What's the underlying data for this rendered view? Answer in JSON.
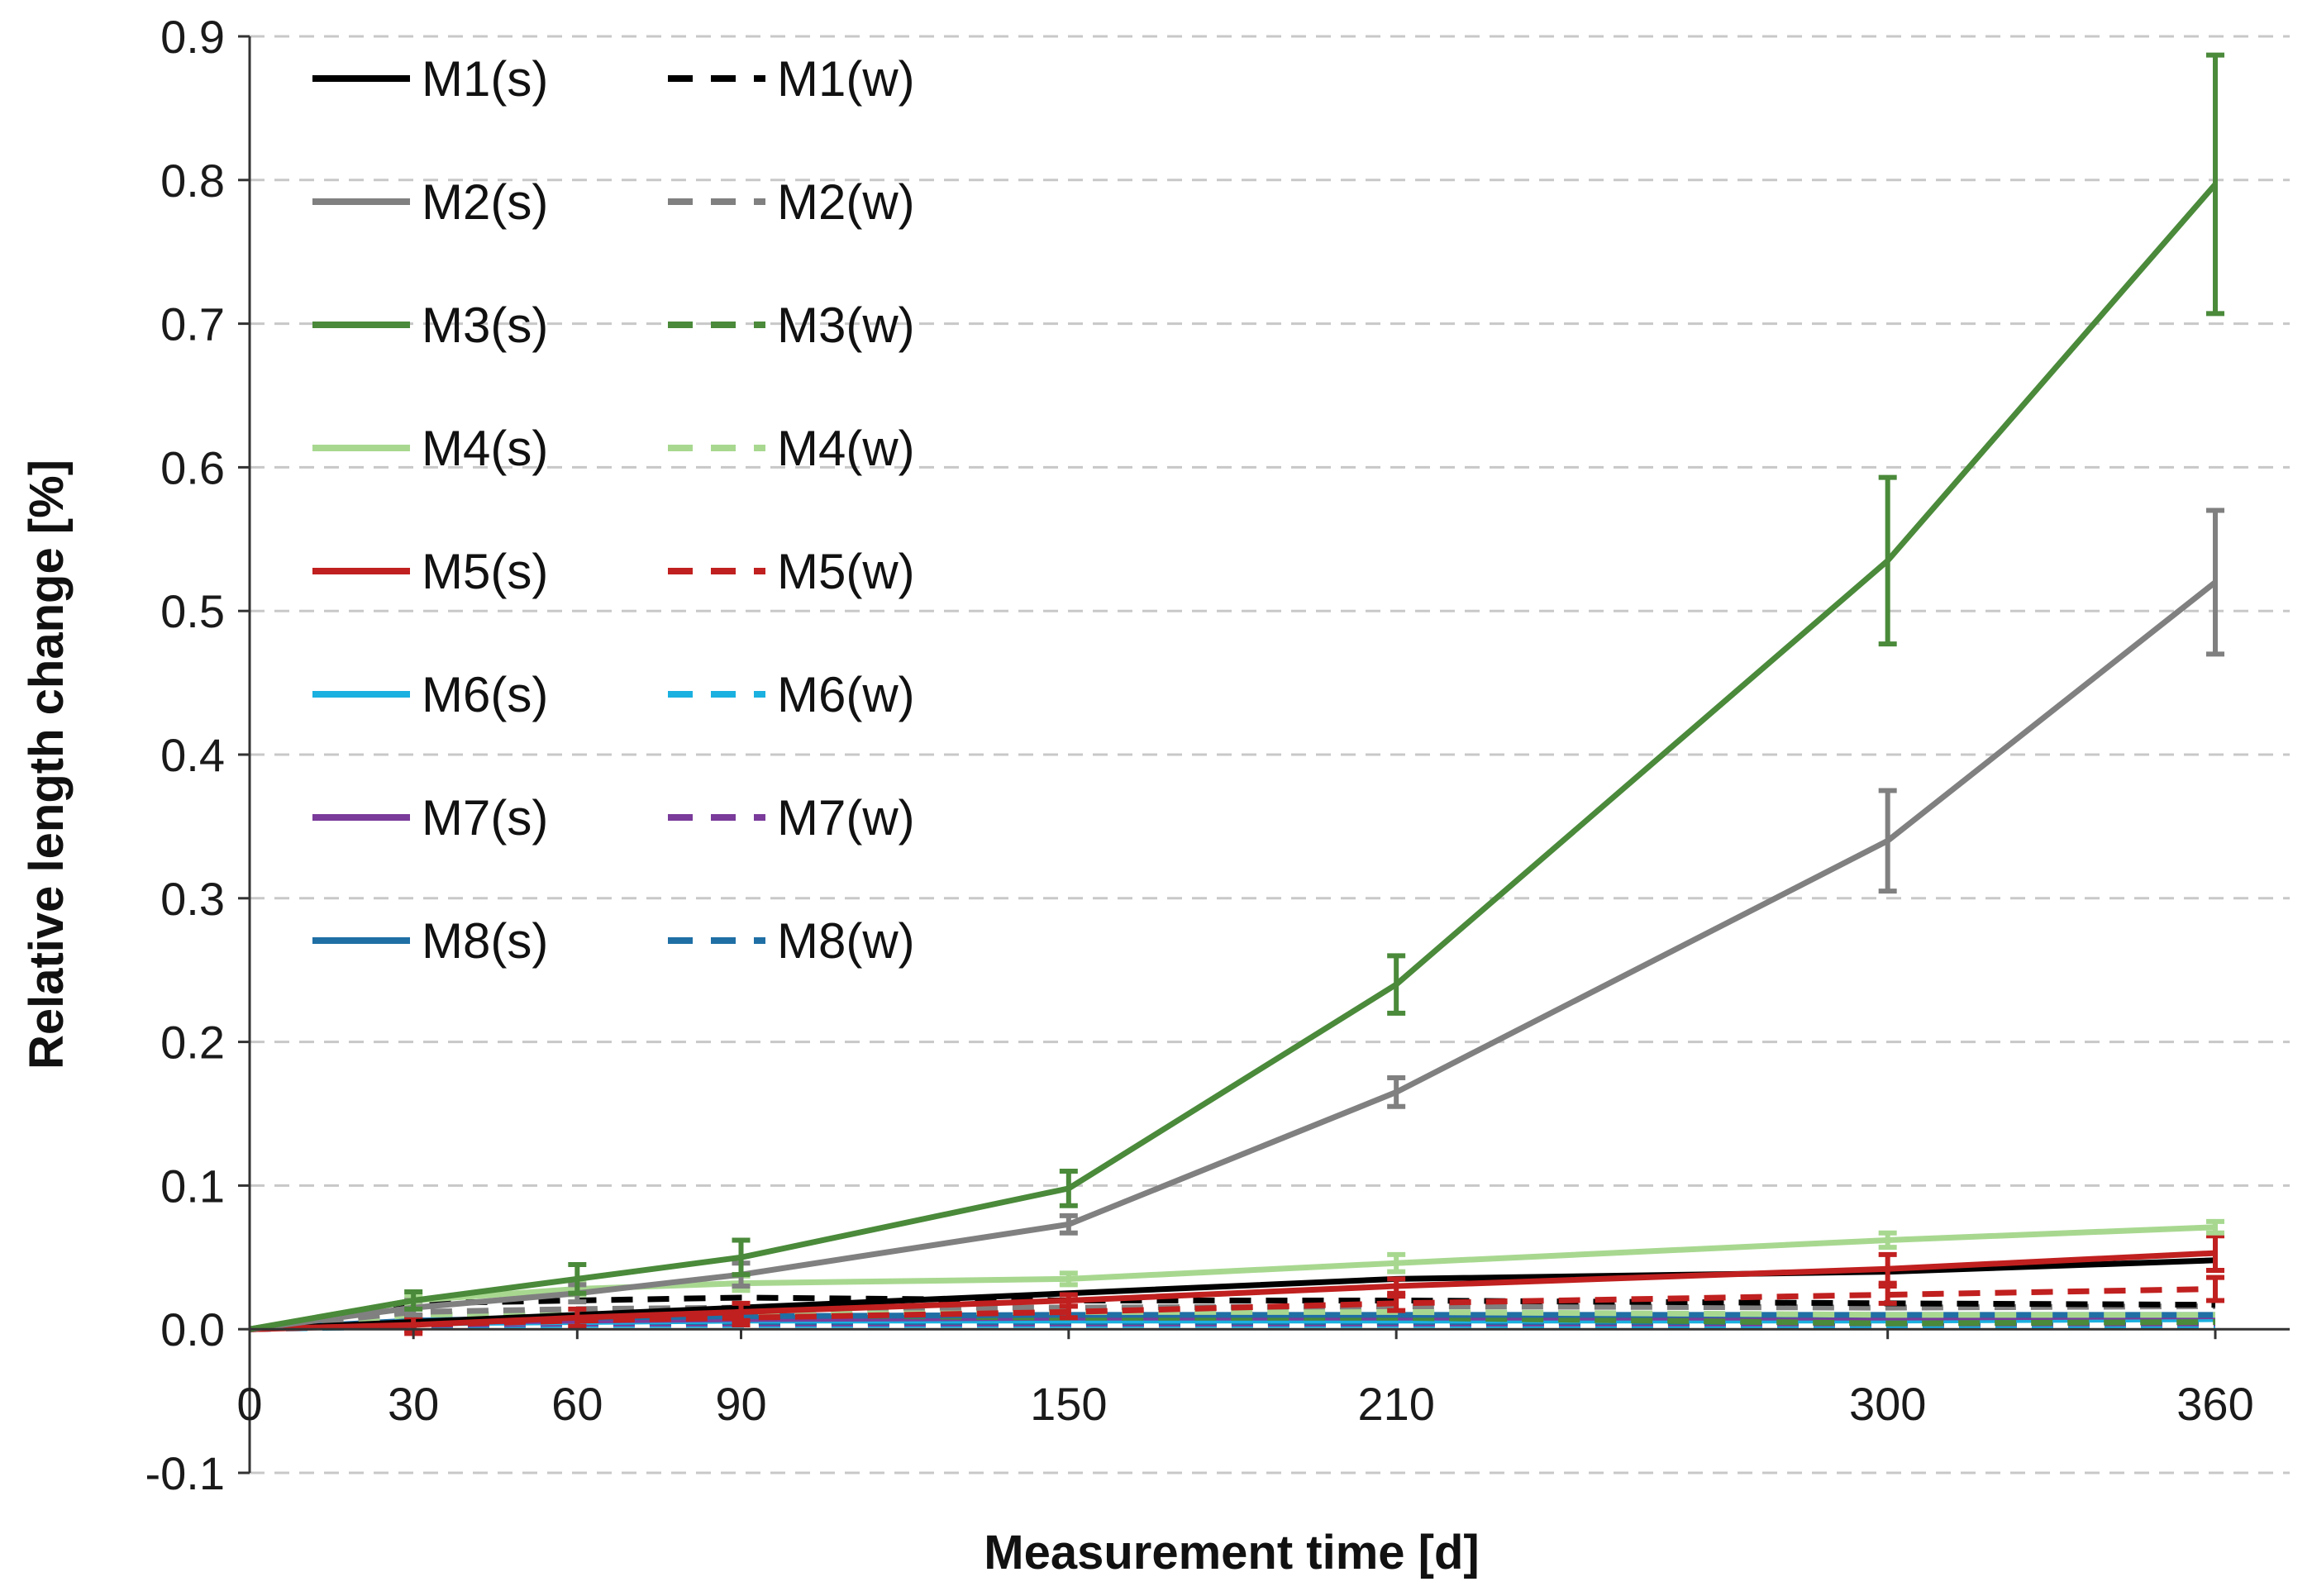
{
  "chart_data": {
    "type": "line",
    "title": "",
    "xlabel": "Measurement time [d]",
    "ylabel": "Relative length  change [%]",
    "xlim": [
      0,
      370
    ],
    "ylim": [
      -0.1,
      0.9
    ],
    "y_tick_labels": [
      "-0.1",
      "0.0",
      "0.1",
      "0.2",
      "0.3",
      "0.4",
      "0.5",
      "0.6",
      "0.7",
      "0.8",
      "0.9"
    ],
    "x_tick_labels": [
      "0",
      "30",
      "60",
      "90",
      "150",
      "210",
      "300",
      "360"
    ],
    "x_tick_values": [
      0,
      30,
      60,
      90,
      150,
      210,
      300,
      360
    ],
    "grid": "horizontal dashed",
    "legend_position": "top-left",
    "series": [
      {
        "name": "M1(s)",
        "style": "solid",
        "color": "#000000",
        "x": [
          0,
          30,
          60,
          90,
          150,
          210,
          300,
          360
        ],
        "values": [
          0,
          0.005,
          0.01,
          0.015,
          0.025,
          0.035,
          0.04,
          0.048
        ]
      },
      {
        "name": "M1(w)",
        "style": "dashed",
        "color": "#000000",
        "x": [
          0,
          30,
          60,
          90,
          150,
          210,
          300,
          360
        ],
        "values": [
          0,
          0.018,
          0.02,
          0.022,
          0.02,
          0.02,
          0.018,
          0.017
        ]
      },
      {
        "name": "M2(s)",
        "style": "solid",
        "color": "#808080",
        "x": [
          0,
          30,
          60,
          90,
          150,
          210,
          300,
          360
        ],
        "values": [
          0,
          0.015,
          0.025,
          0.038,
          0.073,
          0.165,
          0.34,
          0.52
        ],
        "errors": [
          0,
          0.005,
          0.006,
          0.008,
          0.006,
          0.01,
          0.035,
          0.05
        ]
      },
      {
        "name": "M2(w)",
        "style": "dashed",
        "color": "#808080",
        "x": [
          0,
          30,
          60,
          90,
          150,
          210,
          300,
          360
        ],
        "values": [
          0,
          0.012,
          0.014,
          0.015,
          0.015,
          0.016,
          0.015,
          0.016
        ]
      },
      {
        "name": "M3(s)",
        "style": "solid",
        "color": "#4a8a3a",
        "x": [
          0,
          30,
          60,
          90,
          150,
          210,
          300,
          360
        ],
        "values": [
          0,
          0.02,
          0.035,
          0.05,
          0.098,
          0.24,
          0.535,
          0.797
        ],
        "errors": [
          0,
          0.006,
          0.01,
          0.012,
          0.012,
          0.02,
          0.058,
          0.09
        ]
      },
      {
        "name": "M3(w)",
        "style": "dashed",
        "color": "#4a8a3a",
        "x": [
          0,
          30,
          60,
          90,
          150,
          210,
          300,
          360
        ],
        "values": [
          0,
          0.01,
          0.01,
          0.01,
          0.008,
          0.008,
          0.004,
          0.005
        ]
      },
      {
        "name": "M4(s)",
        "style": "solid",
        "color": "#a8d890",
        "x": [
          0,
          30,
          60,
          90,
          150,
          210,
          300,
          360
        ],
        "values": [
          0,
          0.02,
          0.028,
          0.032,
          0.035,
          0.046,
          0.062,
          0.071
        ],
        "errors": [
          0,
          0.003,
          0.004,
          0.005,
          0.004,
          0.006,
          0.005,
          0.004
        ]
      },
      {
        "name": "M4(w)",
        "style": "dashed",
        "color": "#a8d890",
        "x": [
          0,
          30,
          60,
          90,
          150,
          210,
          300,
          360
        ],
        "values": [
          0,
          0.01,
          0.012,
          0.012,
          0.012,
          0.012,
          0.01,
          0.01
        ]
      },
      {
        "name": "M5(s)",
        "style": "solid",
        "color": "#c0201f",
        "x": [
          0,
          30,
          60,
          90,
          150,
          210,
          300,
          360
        ],
        "values": [
          0,
          0.003,
          0.008,
          0.012,
          0.02,
          0.03,
          0.042,
          0.053
        ],
        "errors": [
          0,
          0.006,
          0.006,
          0.006,
          0.004,
          0.005,
          0.01,
          0.012
        ]
      },
      {
        "name": "M5(w)",
        "style": "dashed",
        "color": "#c0201f",
        "x": [
          0,
          30,
          60,
          90,
          150,
          210,
          300,
          360
        ],
        "values": [
          0,
          0.003,
          0.006,
          0.008,
          0.012,
          0.018,
          0.024,
          0.028
        ],
        "errors": [
          0,
          0.004,
          0.004,
          0.005,
          0.004,
          0.005,
          0.006,
          0.008
        ]
      },
      {
        "name": "M6(s)",
        "style": "solid",
        "color": "#1ab0e0",
        "x": [
          0,
          30,
          60,
          90,
          150,
          210,
          300,
          360
        ],
        "values": [
          0,
          0.004,
          0.005,
          0.006,
          0.006,
          0.006,
          0.006,
          0.007
        ]
      },
      {
        "name": "M6(w)",
        "style": "dashed",
        "color": "#1ab0e0",
        "x": [
          0,
          30,
          60,
          90,
          150,
          210,
          300,
          360
        ],
        "values": [
          0,
          0.002,
          0.003,
          0.003,
          0.003,
          0.003,
          0.002,
          0.002
        ]
      },
      {
        "name": "M7(s)",
        "style": "solid",
        "color": "#7a3b9a",
        "x": [
          0,
          30,
          60,
          90,
          150,
          210,
          300,
          360
        ],
        "values": [
          0,
          0.005,
          0.006,
          0.007,
          0.008,
          0.008,
          0.008,
          0.009
        ]
      },
      {
        "name": "M7(w)",
        "style": "dashed",
        "color": "#7a3b9a",
        "x": [
          0,
          30,
          60,
          90,
          150,
          210,
          300,
          360
        ],
        "values": [
          0,
          0.003,
          0.004,
          0.004,
          0.004,
          0.004,
          0.004,
          0.004
        ]
      },
      {
        "name": "M8(s)",
        "style": "solid",
        "color": "#1f6fa5",
        "x": [
          0,
          30,
          60,
          90,
          150,
          210,
          300,
          360
        ],
        "values": [
          0,
          0.006,
          0.008,
          0.009,
          0.01,
          0.01,
          0.01,
          0.01
        ]
      },
      {
        "name": "M8(w)",
        "style": "dashed",
        "color": "#1f6fa5",
        "x": [
          0,
          30,
          60,
          90,
          150,
          210,
          300,
          360
        ],
        "values": [
          0,
          0.004,
          0.005,
          0.005,
          0.005,
          0.005,
          0.005,
          0.005
        ]
      }
    ]
  }
}
